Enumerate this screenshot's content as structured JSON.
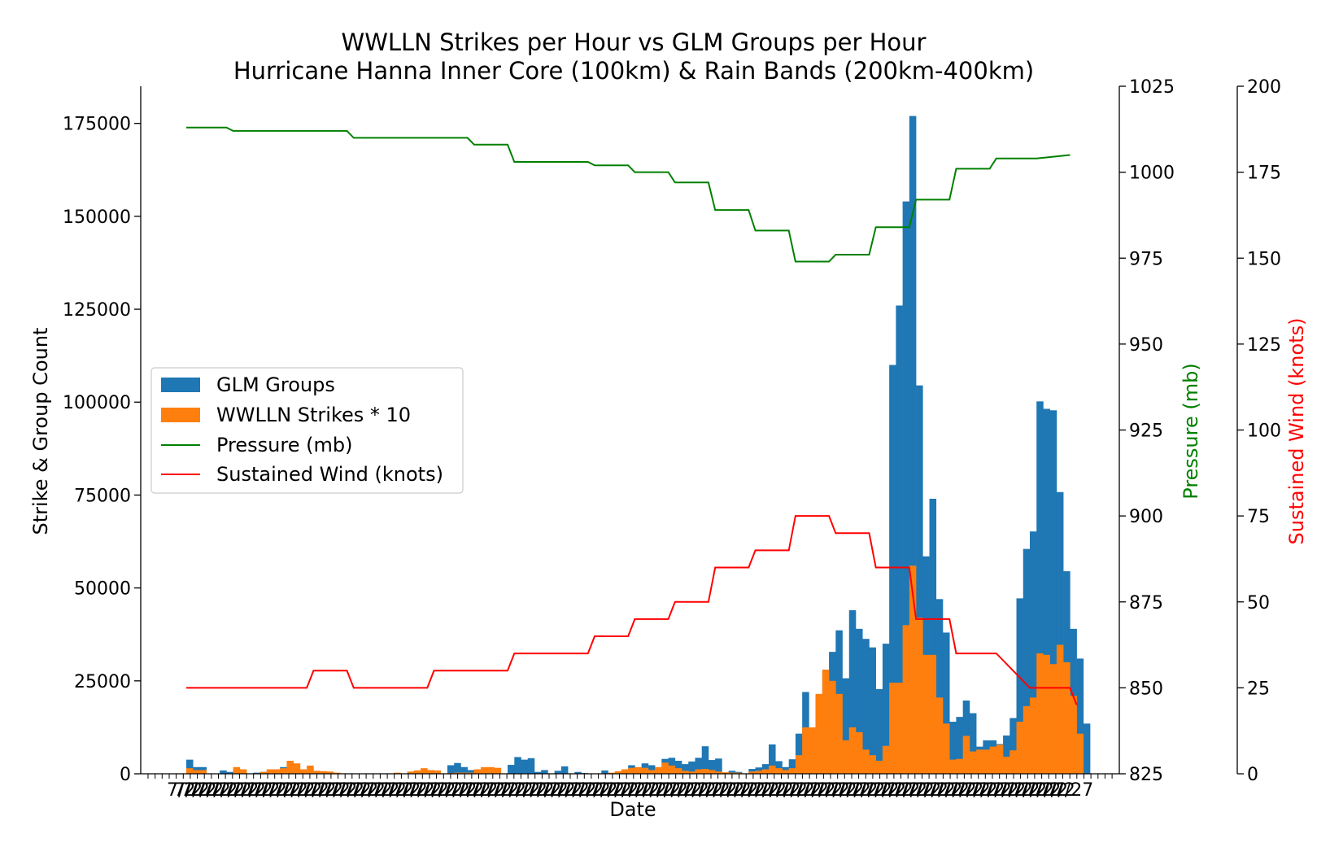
{
  "chart_data": {
    "type": "bar",
    "title": "WWLLN Strikes per Hour vs GLM Groups per Hour",
    "subtitle": "Hurricane Hanna Inner Core (100km) & Rain Bands (200km-400km)",
    "xlabel": "Date",
    "ylabel": "Strike & Group Count",
    "y2label": "Pressure (mb)",
    "y3label": "Sustained Wind (knots)",
    "ylim": [
      0,
      185000
    ],
    "y2lim": [
      825,
      1025
    ],
    "y3lim": [
      0,
      200
    ],
    "yticks": [
      0,
      25000,
      50000,
      75000,
      100000,
      125000,
      150000,
      175000
    ],
    "y2ticks": [
      825,
      850,
      875,
      900,
      925,
      950,
      975,
      1000,
      1025
    ],
    "y3ticks": [
      0,
      25,
      50,
      75,
      100,
      125,
      150,
      175,
      200
    ],
    "xtick_label_repeated": "7/2",
    "xtick_label_last": "7/27",
    "colors": {
      "glm": "#1f77b4",
      "wwlln": "#ff7f0e",
      "pressure": "#008000",
      "wind": "#ff0000"
    },
    "legend_position": "center-left",
    "series": [
      {
        "name": "GLM Groups",
        "kind": "bar",
        "values": [
          3800,
          1800,
          1800,
          0,
          0,
          900,
          500,
          1000,
          400,
          0,
          300,
          500,
          600,
          800,
          1800,
          800,
          1000,
          600,
          700,
          500,
          400,
          200,
          0,
          0,
          0,
          0,
          0,
          0,
          0,
          0,
          0,
          0,
          0,
          0,
          0,
          0,
          200,
          200,
          0,
          2300,
          2900,
          1800,
          1000,
          0,
          0,
          0,
          0,
          0,
          2400,
          4500,
          3800,
          4200,
          500,
          1000,
          0,
          800,
          2000,
          0,
          500,
          200,
          0,
          100,
          900,
          200,
          0,
          400,
          2300,
          1600,
          2800,
          2300,
          1500,
          4000,
          4300,
          3500,
          2600,
          3300,
          4300,
          7400,
          3700,
          4100,
          300,
          800,
          500,
          0,
          1300,
          1700,
          2600,
          7900,
          3400,
          1800,
          3900,
          10800,
          22000,
          12100,
          21200,
          28000,
          32800,
          38600,
          25700,
          44000,
          39000,
          36300,
          34000,
          22800,
          35000,
          110000,
          126000,
          154000,
          177000,
          104500,
          58500,
          74000,
          47000,
          38000,
          14000,
          15300,
          19700,
          16300,
          7300,
          9000,
          9000,
          8000,
          10300,
          15000,
          47200,
          60500,
          65200,
          100200,
          98200,
          97800,
          75800,
          54500,
          39000,
          31000,
          13500
        ]
      },
      {
        "name": "WWLLN Strikes * 10",
        "kind": "bar",
        "values": [
          1500,
          1000,
          1000,
          0,
          0,
          0,
          0,
          1800,
          1200,
          0,
          0,
          500,
          1200,
          1200,
          1500,
          3500,
          2800,
          1200,
          2200,
          800,
          700,
          600,
          300,
          0,
          0,
          0,
          100,
          100,
          100,
          100,
          0,
          300,
          0,
          600,
          900,
          1500,
          1000,
          900,
          0,
          200,
          300,
          300,
          300,
          1200,
          1800,
          1800,
          1600,
          0,
          0,
          0,
          0,
          0,
          0,
          0,
          0,
          0,
          0,
          0,
          0,
          0,
          0,
          0,
          0,
          300,
          700,
          1200,
          1600,
          1800,
          1600,
          1000,
          1800,
          3000,
          2200,
          1500,
          800,
          600,
          1200,
          1300,
          1000,
          600,
          400,
          300,
          300,
          0,
          600,
          800,
          1200,
          2200,
          1500,
          1000,
          1500,
          5000,
          12500,
          12500,
          21500,
          28000,
          25000,
          21500,
          9000,
          12500,
          11200,
          6500,
          5000,
          3500,
          7500,
          24500,
          24500,
          40000,
          56000,
          42000,
          32000,
          32000,
          20500,
          13500,
          3800,
          4000,
          10200,
          6000,
          6500,
          6500,
          7300,
          7800,
          4600,
          6300,
          14000,
          18200,
          20500,
          32400,
          32000,
          29500,
          34700,
          30000,
          21000,
          10800,
          0
        ]
      },
      {
        "name": "Pressure (mb)",
        "kind": "line",
        "axis": "y2",
        "x": [
          0,
          6,
          7,
          24,
          25,
          42,
          43,
          48,
          49,
          60,
          61,
          66,
          67,
          72,
          73,
          78,
          79,
          84,
          85,
          90,
          91,
          96,
          97,
          102,
          103,
          108,
          109,
          114,
          115,
          120,
          121,
          126,
          127,
          132
        ],
        "values": [
          1013,
          1013,
          1012,
          1012,
          1010,
          1010,
          1008,
          1008,
          1003,
          1003,
          1002,
          1002,
          1000,
          1000,
          997,
          997,
          989,
          989,
          983,
          983,
          974,
          974,
          976,
          976,
          984,
          984,
          992,
          992,
          1001,
          1001,
          1004,
          1004,
          1004,
          1005
        ]
      },
      {
        "name": "Sustained Wind (knots)",
        "kind": "line",
        "axis": "y3",
        "x": [
          0,
          18,
          19,
          24,
          25,
          36,
          37,
          48,
          49,
          60,
          61,
          66,
          67,
          72,
          73,
          78,
          79,
          84,
          85,
          90,
          91,
          96,
          97,
          102,
          103,
          108,
          109,
          114,
          115,
          120,
          121,
          126,
          127,
          132,
          133
        ],
        "values": [
          25,
          25,
          30,
          30,
          25,
          25,
          30,
          30,
          35,
          35,
          40,
          40,
          45,
          45,
          50,
          50,
          60,
          60,
          65,
          65,
          75,
          75,
          70,
          70,
          60,
          60,
          45,
          45,
          35,
          35,
          35,
          25,
          25,
          25,
          20
        ]
      }
    ]
  }
}
